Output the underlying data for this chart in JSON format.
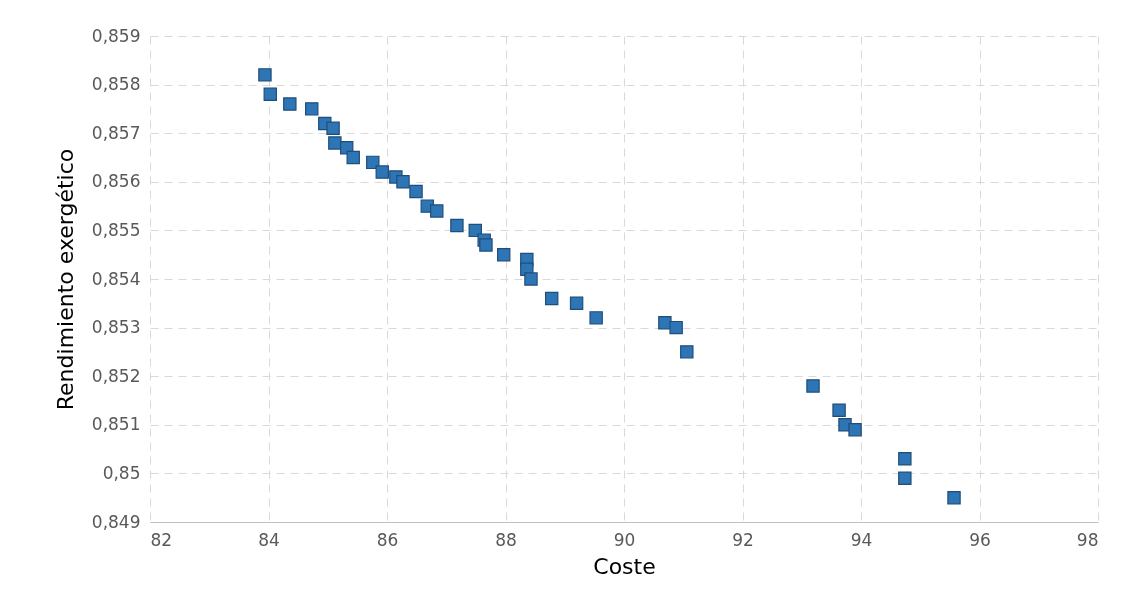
{
  "chart_data": {
    "type": "scatter",
    "xlabel": "Coste",
    "ylabel": "Rendimiento exergético",
    "x": [
      83.94,
      84.03,
      84.36,
      84.73,
      84.95,
      85.09,
      85.12,
      85.32,
      85.43,
      85.76,
      85.92,
      86.15,
      86.27,
      86.49,
      86.68,
      86.84,
      87.18,
      87.49,
      87.64,
      87.67,
      87.97,
      88.36,
      88.36,
      88.43,
      88.78,
      89.2,
      89.53,
      90.69,
      90.88,
      91.06,
      93.19,
      93.63,
      93.73,
      93.9,
      94.74,
      94.74,
      95.57
    ],
    "series": [
      {
        "color": "#2e75b6",
        "values": [
          0.8582,
          0.8578,
          0.8576,
          0.8575,
          0.8572,
          0.8571,
          0.8568,
          0.8567,
          0.8565,
          0.8564,
          0.8562,
          0.8561,
          0.856,
          0.8558,
          0.8555,
          0.8554,
          0.8551,
          0.855,
          0.8548,
          0.8547,
          0.8545,
          0.8544,
          0.8542,
          0.854,
          0.8536,
          0.8535,
          0.8532,
          0.8531,
          0.853,
          0.8525,
          0.8518,
          0.8513,
          0.851,
          0.8509,
          0.8503,
          0.8499,
          0.8495
        ]
      }
    ],
    "xlim": [
      82,
      98
    ],
    "xticks": [
      82,
      84,
      86,
      88,
      90,
      92,
      94,
      96,
      98
    ],
    "ylim": [
      0.849,
      0.859
    ],
    "yticks": [
      {
        "value": 0.849,
        "label": "0,849"
      },
      {
        "value": 0.85,
        "label": "0,85"
      },
      {
        "value": 0.851,
        "label": "0,851"
      },
      {
        "value": 0.852,
        "label": "0,852"
      },
      {
        "value": 0.853,
        "label": "0,853"
      },
      {
        "value": 0.854,
        "label": "0,854"
      },
      {
        "value": 0.855,
        "label": "0,855"
      },
      {
        "value": 0.856,
        "label": "0,856"
      },
      {
        "value": 0.857,
        "label": "0,857"
      },
      {
        "value": 0.858,
        "label": "0,858"
      },
      {
        "value": 0.859,
        "label": "0,859"
      }
    ],
    "grid": true,
    "marker": "square"
  }
}
